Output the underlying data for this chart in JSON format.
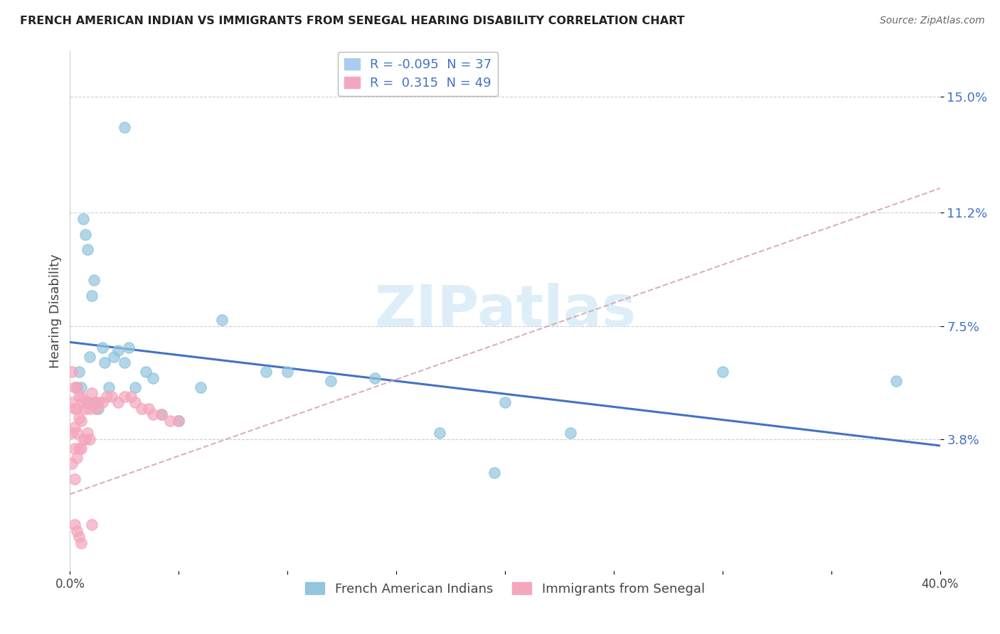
{
  "title": "FRENCH AMERICAN INDIAN VS IMMIGRANTS FROM SENEGAL HEARING DISABILITY CORRELATION CHART",
  "source": "Source: ZipAtlas.com",
  "ylabel": "Hearing Disability",
  "ytick_labels": [
    "3.8%",
    "7.5%",
    "11.2%",
    "15.0%"
  ],
  "ytick_values": [
    0.038,
    0.075,
    0.112,
    0.15
  ],
  "xlim": [
    0.0,
    0.4
  ],
  "ylim": [
    -0.005,
    0.165
  ],
  "group1_color": "#92c5de",
  "group2_color": "#f4a6bc",
  "trendline1_color": "#4472c4",
  "trendline2_color": "#e87090",
  "trendline2_dash": "#d4a0b5",
  "watermark_color": "#ddeef8",
  "legend_r1": "R = -0.095  N = 37",
  "legend_r2": "R =  0.315  N = 49",
  "legend_label1": "French American Indians",
  "legend_label2": "Immigrants from Senegal",
  "french_ai_x": [
    0.003,
    0.004,
    0.005,
    0.006,
    0.007,
    0.008,
    0.008,
    0.009,
    0.01,
    0.011,
    0.012,
    0.013,
    0.015,
    0.016,
    0.018,
    0.02,
    0.022,
    0.025,
    0.027,
    0.03,
    0.035,
    0.038,
    0.042,
    0.05,
    0.06,
    0.07,
    0.09,
    0.1,
    0.12,
    0.14,
    0.17,
    0.195,
    0.3,
    0.38,
    0.2,
    0.23,
    0.025
  ],
  "french_ai_y": [
    0.055,
    0.06,
    0.055,
    0.11,
    0.105,
    0.1,
    0.05,
    0.065,
    0.085,
    0.09,
    0.05,
    0.048,
    0.068,
    0.063,
    0.055,
    0.065,
    0.067,
    0.063,
    0.068,
    0.055,
    0.06,
    0.058,
    0.046,
    0.044,
    0.055,
    0.077,
    0.06,
    0.06,
    0.057,
    0.058,
    0.04,
    0.027,
    0.06,
    0.057,
    0.05,
    0.04,
    0.14
  ],
  "senegal_x": [
    0.001,
    0.001,
    0.001,
    0.002,
    0.002,
    0.002,
    0.002,
    0.002,
    0.003,
    0.003,
    0.003,
    0.003,
    0.004,
    0.004,
    0.004,
    0.005,
    0.005,
    0.005,
    0.006,
    0.006,
    0.007,
    0.007,
    0.008,
    0.008,
    0.009,
    0.009,
    0.01,
    0.011,
    0.012,
    0.013,
    0.015,
    0.017,
    0.019,
    0.022,
    0.025,
    0.028,
    0.03,
    0.033,
    0.036,
    0.038,
    0.042,
    0.046,
    0.05,
    0.01,
    0.002,
    0.003,
    0.004,
    0.005,
    0.001
  ],
  "senegal_y": [
    0.05,
    0.04,
    0.03,
    0.055,
    0.048,
    0.042,
    0.035,
    0.025,
    0.055,
    0.048,
    0.04,
    0.032,
    0.052,
    0.045,
    0.035,
    0.052,
    0.044,
    0.035,
    0.05,
    0.038,
    0.048,
    0.038,
    0.05,
    0.04,
    0.048,
    0.038,
    0.053,
    0.05,
    0.048,
    0.05,
    0.05,
    0.052,
    0.052,
    0.05,
    0.052,
    0.052,
    0.05,
    0.048,
    0.048,
    0.046,
    0.046,
    0.044,
    0.044,
    0.01,
    0.01,
    0.008,
    0.006,
    0.004,
    0.06
  ]
}
